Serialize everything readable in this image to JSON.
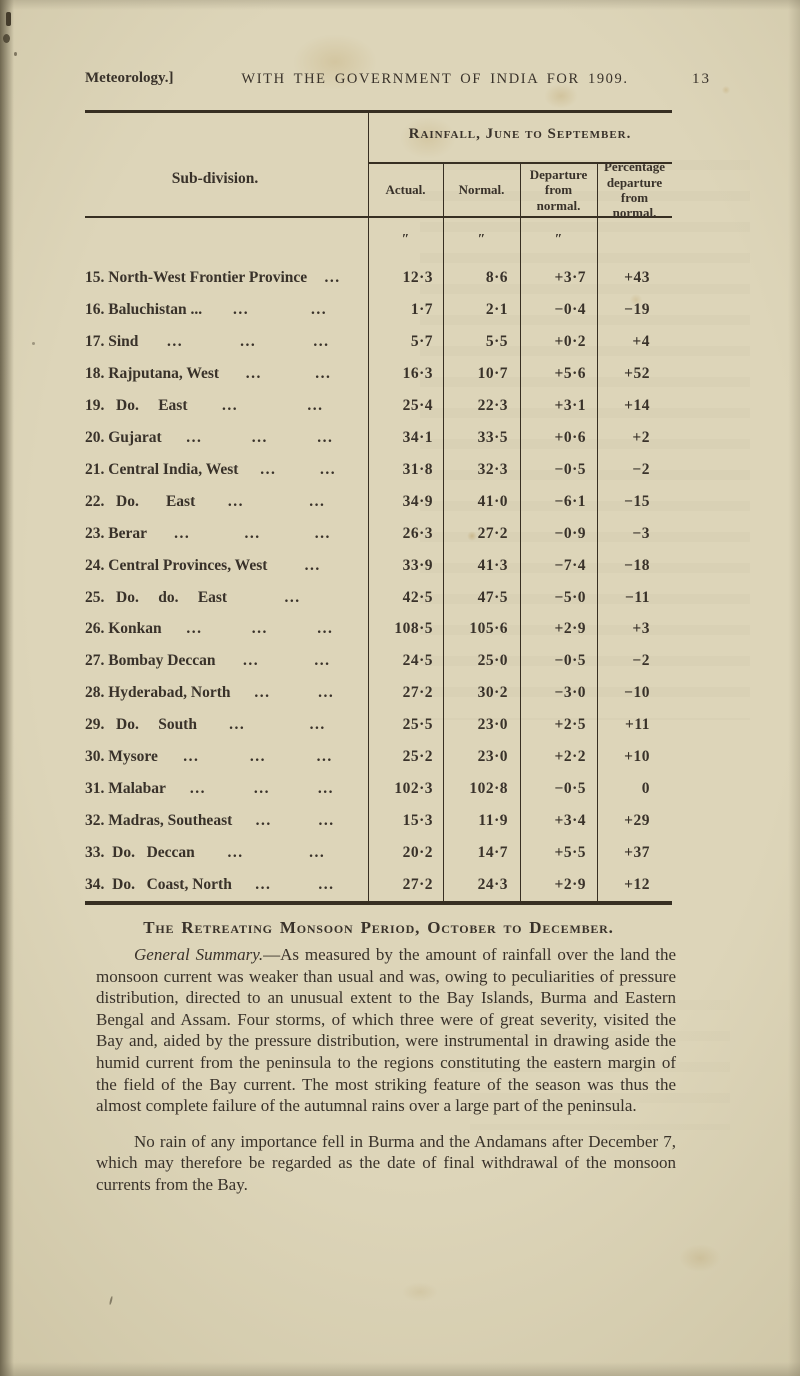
{
  "header": {
    "left": "Meteorology.]",
    "center": "WITH THE GOVERNMENT OF INDIA FOR 1909.",
    "page_number": "13"
  },
  "table": {
    "group_title": "Rainfall, June to September.",
    "row_header": "Sub-division.",
    "columns": [
      "Actual.",
      "Normal.",
      "Departure from normal.",
      "Percentage departure from normal."
    ],
    "unit_marks": [
      "″",
      "″",
      "″"
    ],
    "rows": [
      {
        "num": "15.",
        "name": "North-West Frontier Province",
        "dots": 1,
        "actual": "12·3",
        "normal": "8·6",
        "departure": "+3·7",
        "percent": "+43"
      },
      {
        "num": "16.",
        "name": "Baluchistan ...",
        "dots": 2,
        "actual": "1·7",
        "normal": "2·1",
        "departure": "−0·4",
        "percent": "−19"
      },
      {
        "num": "17.",
        "name": "Sind",
        "dots": 3,
        "actual": "5·7",
        "normal": "5·5",
        "departure": "+0·2",
        "percent": "+4"
      },
      {
        "num": "18.",
        "name": "Rajputana, West",
        "dots": 2,
        "actual": "16·3",
        "normal": "10·7",
        "departure": "+5·6",
        "percent": "+52"
      },
      {
        "num": "19.",
        "name": "  Do.     East",
        "dots": 2,
        "actual": "25·4",
        "normal": "22·3",
        "departure": "+3·1",
        "percent": "+14"
      },
      {
        "num": "20.",
        "name": "Gujarat",
        "dots": 3,
        "actual": "34·1",
        "normal": "33·5",
        "departure": "+0·6",
        "percent": "+2"
      },
      {
        "num": "21.",
        "name": "Central India, West",
        "dots": 2,
        "actual": "31·8",
        "normal": "32·3",
        "departure": "−0·5",
        "percent": "−2"
      },
      {
        "num": "22.",
        "name": "  Do.       East",
        "dots": 2,
        "actual": "34·9",
        "normal": "41·0",
        "departure": "−6·1",
        "percent": "−15"
      },
      {
        "num": "23.",
        "name": "Berar",
        "dots": 3,
        "actual": "26·3",
        "normal": "27·2",
        "departure": "−0·9",
        "percent": "−3"
      },
      {
        "num": "24.",
        "name": "Central Provinces, West",
        "dots": 1,
        "actual": "33·9",
        "normal": "41·3",
        "departure": "−7·4",
        "percent": "−18"
      },
      {
        "num": "25.",
        "name": "  Do.     do.     East",
        "dots": 1,
        "actual": "42·5",
        "normal": "47·5",
        "departure": "−5·0",
        "percent": "−11"
      },
      {
        "num": "26.",
        "name": "Konkan",
        "dots": 3,
        "actual": "108·5",
        "normal": "105·6",
        "departure": "+2·9",
        "percent": "+3"
      },
      {
        "num": "27.",
        "name": "Bombay Deccan",
        "dots": 2,
        "actual": "24·5",
        "normal": "25·0",
        "departure": "−0·5",
        "percent": "−2"
      },
      {
        "num": "28.",
        "name": "Hyderabad, North",
        "dots": 2,
        "actual": "27·2",
        "normal": "30·2",
        "departure": "−3·0",
        "percent": "−10"
      },
      {
        "num": "29.",
        "name": "  Do.     South",
        "dots": 2,
        "actual": "25·5",
        "normal": "23·0",
        "departure": "+2·5",
        "percent": "+11"
      },
      {
        "num": "30.",
        "name": "Mysore",
        "dots": 3,
        "actual": "25·2",
        "normal": "23·0",
        "departure": "+2·2",
        "percent": "+10"
      },
      {
        "num": "31.",
        "name": "Malabar",
        "dots": 3,
        "actual": "102·3",
        "normal": "102·8",
        "departure": "−0·5",
        "percent": "0"
      },
      {
        "num": "32.",
        "name": "Madras, Southeast",
        "dots": 2,
        "actual": "15·3",
        "normal": "11·9",
        "departure": "+3·4",
        "percent": "+29"
      },
      {
        "num": "33.",
        "name": " Do.   Deccan",
        "dots": 2,
        "actual": "20·2",
        "normal": "14·7",
        "departure": "+5·5",
        "percent": "+37"
      },
      {
        "num": "34.",
        "name": " Do.   Coast, North",
        "dots": 2,
        "actual": "27·2",
        "normal": "24·3",
        "departure": "+2·9",
        "percent": "+12"
      }
    ]
  },
  "section_heading": "The Retreating Monsoon Period, October to December.",
  "paragraphs": [
    {
      "lead": "General Summary.",
      "text": "—As measured by the amount of rainfall over the land the monsoon current was weaker than usual and was, owing to peculiarities of pressure distribution, directed to an unusual extent to the Bay Islands, Burma and Eastern Bengal and Assam.  Four storms, of which three were of great severity, visited the Bay and, aided by the pressure distribution, were instrumental in drawing aside the humid current from the peninsula to the regions constituting the eastern margin of the field of the Bay current.  The most striking feature of the season was thus the almost complete failure of the autumnal rains over a large part of the peninsula."
    },
    {
      "lead": "",
      "text": "No rain of any importance fell in Burma and the Andamans after December 7, which may therefore be regarded as the date of final withdrawal of the monsoon currents from the Bay."
    }
  ]
}
